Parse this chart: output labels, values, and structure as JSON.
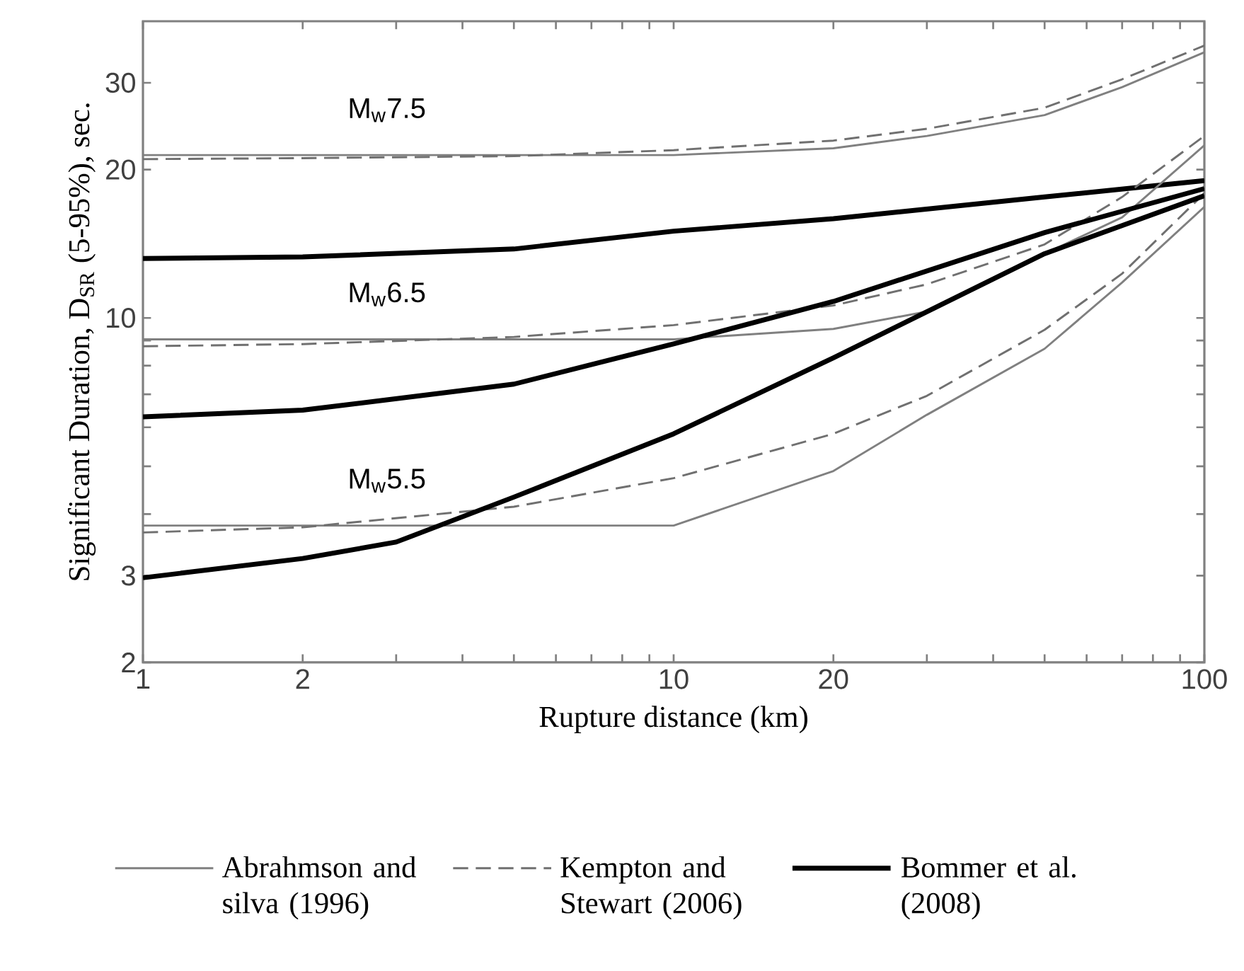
{
  "chart_data": {
    "type": "line",
    "xlabel": "Rupture distance (km)",
    "ylabel": "Significant Duration, D$_{SR}$ (5-95%), sec.",
    "log": "xy",
    "legend": "bottom",
    "xlim": [
      1,
      100
    ],
    "ylim": [
      2,
      40
    ],
    "xticks": [
      1,
      2,
      {
        "value": 3,
        "label": null
      },
      {
        "value": 4,
        "label": null
      },
      {
        "value": 5,
        "label": null
      },
      {
        "value": 6,
        "label": null
      },
      {
        "value": 7,
        "label": null
      },
      {
        "value": 8,
        "label": null
      },
      {
        "value": 9,
        "label": null
      },
      10,
      20,
      {
        "value": 30,
        "label": null
      },
      {
        "value": 40,
        "label": null
      },
      {
        "value": 50,
        "label": null
      },
      {
        "value": 60,
        "label": null
      },
      {
        "value": 70,
        "label": null
      },
      {
        "value": 80,
        "label": null
      },
      {
        "value": 90,
        "label": null
      },
      100
    ],
    "yticks": [
      2,
      3,
      {
        "value": 4,
        "label": null
      },
      {
        "value": 5,
        "label": null
      },
      {
        "value": 6,
        "label": null
      },
      {
        "value": 7,
        "label": null
      },
      {
        "value": 8,
        "label": null
      },
      {
        "value": 9,
        "label": null
      },
      10,
      20,
      30
    ],
    "annotations": [
      "M$_{w}$7.5",
      "M$_{w}$6.5",
      "M$_{w}$5.5"
    ],
    "series": [
      {
        "name": "Abrahmson and silva (1996)",
        "color": "#808080",
        "line_style": "solid",
        "x": [
          1,
          10,
          20,
          30,
          50,
          70,
          100
        ],
        "values": [
          21.4,
          21.4,
          22.1,
          23.4,
          25.8,
          29.4,
          34.6
        ]
      },
      {
        "name": "Kempton and Stewart (2006)",
        "color": "#707070",
        "line_style": "dashed",
        "x": [
          1,
          2,
          5,
          10,
          20,
          30,
          50,
          70,
          100
        ],
        "values": [
          21.0,
          21.1,
          21.3,
          21.9,
          22.9,
          24.2,
          26.7,
          30.5,
          35.7
        ]
      },
      {
        "name": "Bommer et al. (2008)",
        "color": "#000000",
        "line_style": "solid",
        "x": [
          1,
          2,
          5,
          10,
          20,
          50,
          100
        ],
        "values": [
          13.2,
          13.3,
          13.8,
          15.0,
          15.9,
          17.6,
          19.0
        ]
      },
      {
        "color": "#808080",
        "line_style": "solid",
        "x": [
          1,
          10,
          20,
          30,
          50,
          70,
          100
        ],
        "values": [
          9.05,
          9.05,
          9.5,
          10.3,
          13.5,
          16.0,
          22.4
        ]
      },
      {
        "color": "#707070",
        "line_style": "dashed",
        "x": [
          1,
          2,
          5,
          10,
          20,
          30,
          50,
          70,
          100
        ],
        "values": [
          8.76,
          8.85,
          9.15,
          9.67,
          10.6,
          11.7,
          14.1,
          17.6,
          23.4
        ]
      },
      {
        "color": "#000000",
        "line_style": "solid",
        "x": [
          1,
          2,
          5,
          10,
          20,
          50,
          100
        ],
        "values": [
          6.3,
          6.5,
          7.34,
          8.86,
          10.8,
          14.9,
          18.3
        ]
      },
      {
        "color": "#808080",
        "line_style": "solid",
        "x": [
          1,
          10,
          20,
          30,
          50,
          70,
          100
        ],
        "values": [
          3.79,
          3.79,
          4.89,
          6.36,
          8.66,
          11.8,
          16.8
        ]
      },
      {
        "color": "#707070",
        "line_style": "dashed",
        "x": [
          1,
          2,
          5,
          10,
          20,
          30,
          50,
          70,
          100
        ],
        "values": [
          3.67,
          3.76,
          4.14,
          4.73,
          5.82,
          6.95,
          9.46,
          12.3,
          17.9
        ]
      },
      {
        "color": "#000000",
        "line_style": "solid",
        "x": [
          1,
          2,
          3,
          5,
          10,
          20,
          50,
          100
        ],
        "values": [
          2.97,
          3.25,
          3.51,
          4.33,
          5.82,
          8.3,
          13.5,
          17.7
        ]
      }
    ]
  }
}
